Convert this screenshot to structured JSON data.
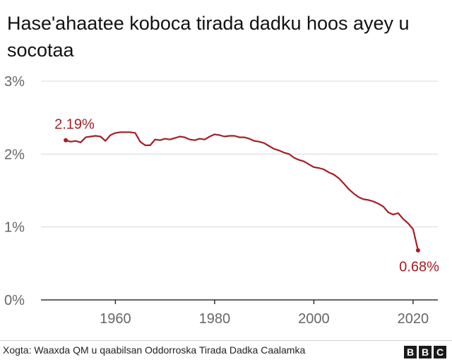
{
  "title": "Hase'ahaatee koboca tirada dadku hoos ayey u socotaa",
  "source": "Xogta: Waaxda QM u qaabilsan Oddorroska Tirada Dadka Caalamka",
  "logo": {
    "letters": [
      "B",
      "B",
      "C"
    ]
  },
  "colors": {
    "line": "#a61d24",
    "grid": "#d9d9d9",
    "axis": "#333333",
    "tick_text": "#666666"
  },
  "chart_data": {
    "type": "line",
    "title": "Hase'ahaatee koboca tirada dadku hoos ayey u socotaa",
    "xlabel": "",
    "ylabel": "",
    "xlim": [
      1945,
      2025
    ],
    "ylim": [
      0,
      3
    ],
    "grid": true,
    "y_ticks": [
      {
        "value": 0,
        "label": "0%"
      },
      {
        "value": 1,
        "label": "1%"
      },
      {
        "value": 2,
        "label": "2%"
      },
      {
        "value": 3,
        "label": "3%"
      }
    ],
    "x_ticks": [
      {
        "value": 1960,
        "label": "1960"
      },
      {
        "value": 1980,
        "label": "1980"
      },
      {
        "value": 2000,
        "label": "2000"
      },
      {
        "value": 2020,
        "label": "2020"
      }
    ],
    "series": [
      {
        "x": [
          1950,
          1951,
          1952,
          1953,
          1954,
          1955,
          1956,
          1957,
          1958,
          1959,
          1960,
          1961,
          1962,
          1963,
          1964,
          1965,
          1966,
          1967,
          1968,
          1969,
          1970,
          1971,
          1972,
          1973,
          1974,
          1975,
          1976,
          1977,
          1978,
          1979,
          1980,
          1981,
          1982,
          1983,
          1984,
          1985,
          1986,
          1987,
          1988,
          1989,
          1990,
          1991,
          1992,
          1993,
          1994,
          1995,
          1996,
          1997,
          1998,
          1999,
          2000,
          2001,
          2002,
          2003,
          2004,
          2005,
          2006,
          2007,
          2008,
          2009,
          2010,
          2011,
          2012,
          2013,
          2014,
          2015,
          2016,
          2017,
          2018,
          2019,
          2020,
          2021
        ],
        "y": [
          2.19,
          2.17,
          2.18,
          2.16,
          2.23,
          2.24,
          2.25,
          2.24,
          2.18,
          2.26,
          2.29,
          2.3,
          2.3,
          2.3,
          2.29,
          2.17,
          2.12,
          2.12,
          2.2,
          2.19,
          2.21,
          2.2,
          2.22,
          2.24,
          2.23,
          2.2,
          2.19,
          2.21,
          2.2,
          2.24,
          2.27,
          2.26,
          2.24,
          2.25,
          2.25,
          2.23,
          2.23,
          2.21,
          2.18,
          2.17,
          2.15,
          2.11,
          2.07,
          2.05,
          2.02,
          2.0,
          1.95,
          1.92,
          1.9,
          1.86,
          1.82,
          1.81,
          1.79,
          1.75,
          1.72,
          1.67,
          1.6,
          1.52,
          1.46,
          1.41,
          1.38,
          1.37,
          1.35,
          1.32,
          1.28,
          1.2,
          1.17,
          1.19,
          1.11,
          1.05,
          0.97,
          0.68
        ]
      }
    ],
    "annotations": [
      {
        "x": 1950,
        "y": 2.19,
        "label": "2.19%"
      },
      {
        "x": 2021,
        "y": 0.68,
        "label": "0.68%"
      }
    ]
  }
}
